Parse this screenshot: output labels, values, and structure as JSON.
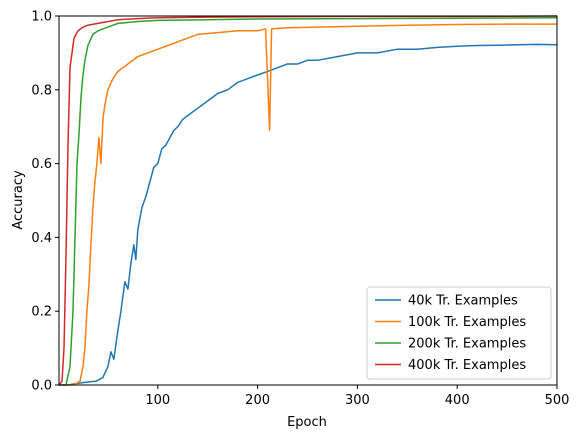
{
  "chart_data": {
    "type": "line",
    "title": "",
    "xlabel": "Epoch",
    "ylabel": "Accuracy",
    "xlim": [
      1,
      500
    ],
    "ylim": [
      0,
      1
    ],
    "x_ticks": [
      100,
      200,
      300,
      400,
      500
    ],
    "x_tick_labels": [
      "100",
      "200",
      "300",
      "400",
      "500"
    ],
    "y_ticks": [
      0,
      0.2,
      0.4,
      0.6,
      0.8,
      1.0
    ],
    "y_tick_labels": [
      "0.0",
      "0.2",
      "0.4",
      "0.6",
      "0.8",
      "1.0"
    ],
    "grid": false,
    "legend_position": "lower-right",
    "series": [
      {
        "name": "40k Tr. Examples",
        "color": "#1f77b4",
        "points": [
          [
            1,
            0
          ],
          [
            10,
            0
          ],
          [
            20,
            0.005
          ],
          [
            30,
            0.008
          ],
          [
            38,
            0.01
          ],
          [
            45,
            0.02
          ],
          [
            50,
            0.05
          ],
          [
            53,
            0.09
          ],
          [
            56,
            0.07
          ],
          [
            59,
            0.13
          ],
          [
            63,
            0.2
          ],
          [
            67,
            0.28
          ],
          [
            70,
            0.26
          ],
          [
            73,
            0.33
          ],
          [
            76,
            0.38
          ],
          [
            78,
            0.34
          ],
          [
            80,
            0.42
          ],
          [
            84,
            0.48
          ],
          [
            88,
            0.51
          ],
          [
            92,
            0.55
          ],
          [
            96,
            0.59
          ],
          [
            100,
            0.6
          ],
          [
            104,
            0.64
          ],
          [
            108,
            0.65
          ],
          [
            112,
            0.67
          ],
          [
            116,
            0.69
          ],
          [
            120,
            0.7
          ],
          [
            125,
            0.72
          ],
          [
            130,
            0.73
          ],
          [
            135,
            0.74
          ],
          [
            140,
            0.75
          ],
          [
            145,
            0.76
          ],
          [
            150,
            0.77
          ],
          [
            160,
            0.79
          ],
          [
            170,
            0.8
          ],
          [
            180,
            0.82
          ],
          [
            190,
            0.83
          ],
          [
            200,
            0.84
          ],
          [
            210,
            0.85
          ],
          [
            220,
            0.86
          ],
          [
            230,
            0.87
          ],
          [
            240,
            0.87
          ],
          [
            250,
            0.88
          ],
          [
            260,
            0.88
          ],
          [
            280,
            0.89
          ],
          [
            300,
            0.9
          ],
          [
            320,
            0.9
          ],
          [
            340,
            0.91
          ],
          [
            360,
            0.91
          ],
          [
            380,
            0.915
          ],
          [
            400,
            0.918
          ],
          [
            420,
            0.92
          ],
          [
            440,
            0.921
          ],
          [
            460,
            0.922
          ],
          [
            480,
            0.923
          ],
          [
            500,
            0.922
          ]
        ]
      },
      {
        "name": "100k Tr. Examples",
        "color": "#ff7f0e",
        "points": [
          [
            1,
            0
          ],
          [
            15,
            0
          ],
          [
            22,
            0.01
          ],
          [
            25,
            0.05
          ],
          [
            27,
            0.1
          ],
          [
            29,
            0.2
          ],
          [
            31,
            0.27
          ],
          [
            33,
            0.38
          ],
          [
            35,
            0.48
          ],
          [
            37,
            0.55
          ],
          [
            39,
            0.6
          ],
          [
            41,
            0.67
          ],
          [
            43,
            0.6
          ],
          [
            45,
            0.72
          ],
          [
            47,
            0.76
          ],
          [
            50,
            0.8
          ],
          [
            55,
            0.83
          ],
          [
            60,
            0.85
          ],
          [
            65,
            0.86
          ],
          [
            70,
            0.87
          ],
          [
            80,
            0.89
          ],
          [
            90,
            0.9
          ],
          [
            100,
            0.91
          ],
          [
            110,
            0.92
          ],
          [
            120,
            0.93
          ],
          [
            130,
            0.94
          ],
          [
            140,
            0.95
          ],
          [
            160,
            0.955
          ],
          [
            180,
            0.96
          ],
          [
            200,
            0.96
          ],
          [
            208,
            0.965
          ],
          [
            212,
            0.69
          ],
          [
            214,
            0.965
          ],
          [
            230,
            0.968
          ],
          [
            260,
            0.97
          ],
          [
            300,
            0.972
          ],
          [
            350,
            0.975
          ],
          [
            400,
            0.977
          ],
          [
            450,
            0.978
          ],
          [
            500,
            0.978
          ]
        ]
      },
      {
        "name": "200k Tr. Examples",
        "color": "#2ca02c",
        "points": [
          [
            1,
            0
          ],
          [
            8,
            0
          ],
          [
            12,
            0.05
          ],
          [
            15,
            0.2
          ],
          [
            17,
            0.4
          ],
          [
            19,
            0.6
          ],
          [
            21,
            0.68
          ],
          [
            23,
            0.78
          ],
          [
            25,
            0.84
          ],
          [
            27,
            0.88
          ],
          [
            30,
            0.92
          ],
          [
            35,
            0.95
          ],
          [
            40,
            0.96
          ],
          [
            50,
            0.97
          ],
          [
            60,
            0.98
          ],
          [
            80,
            0.985
          ],
          [
            100,
            0.988
          ],
          [
            150,
            0.99
          ],
          [
            200,
            0.992
          ],
          [
            300,
            0.993
          ],
          [
            400,
            0.994
          ],
          [
            500,
            0.995
          ]
        ]
      },
      {
        "name": "400k Tr. Examples",
        "color": "#d62728",
        "points": [
          [
            1,
            0
          ],
          [
            4,
            0.01
          ],
          [
            6,
            0.1
          ],
          [
            8,
            0.35
          ],
          [
            10,
            0.65
          ],
          [
            12,
            0.86
          ],
          [
            14,
            0.9
          ],
          [
            16,
            0.94
          ],
          [
            20,
            0.96
          ],
          [
            25,
            0.97
          ],
          [
            30,
            0.975
          ],
          [
            40,
            0.98
          ],
          [
            60,
            0.99
          ],
          [
            80,
            0.993
          ],
          [
            100,
            0.995
          ],
          [
            150,
            0.997
          ],
          [
            200,
            0.998
          ],
          [
            300,
            0.999
          ],
          [
            400,
            0.999
          ],
          [
            500,
            1.0
          ]
        ]
      }
    ]
  }
}
